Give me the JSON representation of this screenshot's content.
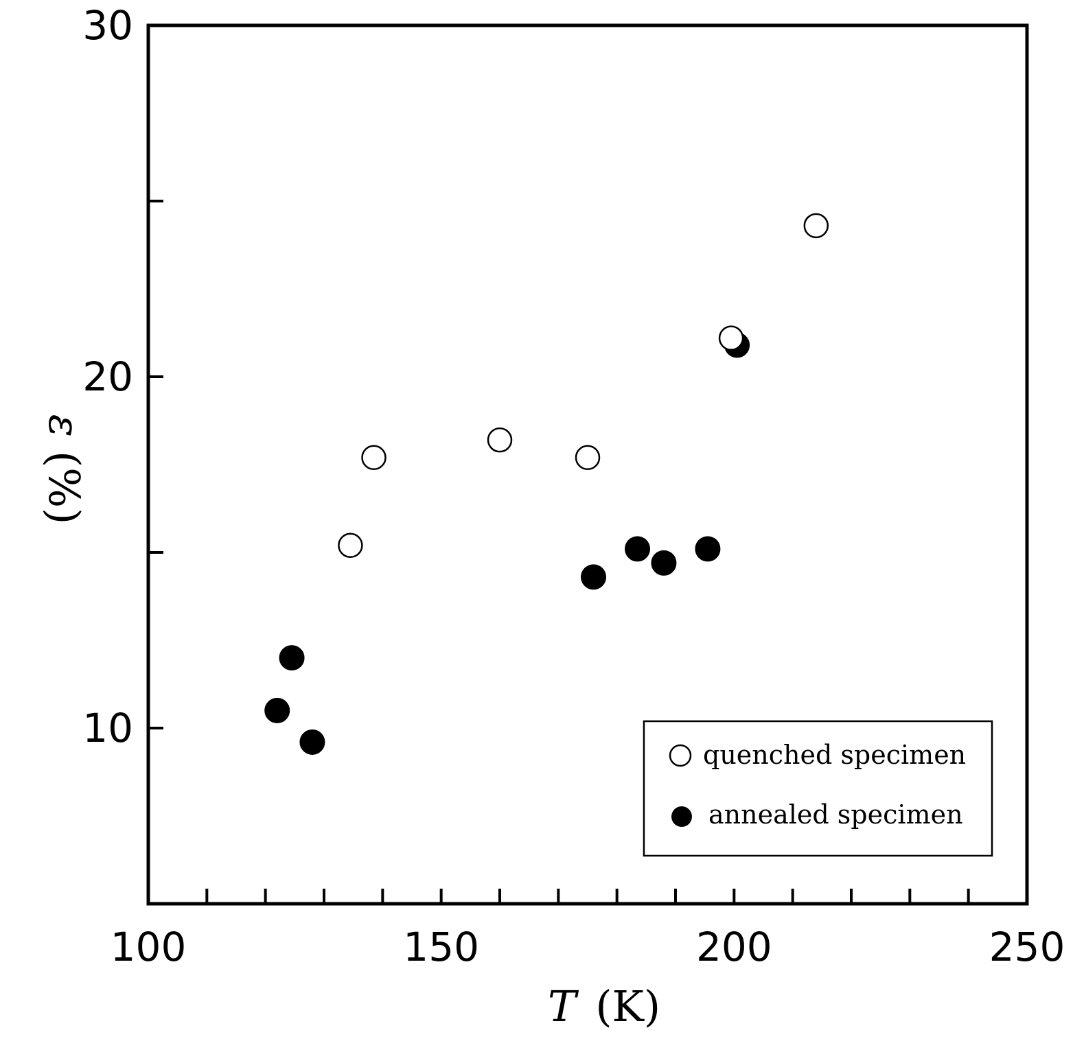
{
  "chart_data": {
    "type": "scatter",
    "title": "",
    "xlabel": "T",
    "xlabel_unit": "(K)",
    "ylabel": "ε",
    "ylabel_unit": "(%)",
    "xlim": [
      100,
      250
    ],
    "ylim": [
      5,
      30
    ],
    "x_tick_labels": [
      "100",
      "150",
      "200",
      "250"
    ],
    "y_tick_labels": [
      "10",
      "20",
      "30"
    ],
    "grid": false,
    "legend_position": "bottom-right",
    "series": [
      {
        "name": "quenched specimen",
        "marker": "open-circle",
        "x": [
          134.5,
          138.5,
          160,
          175,
          199.5,
          214
        ],
        "y": [
          15.2,
          17.7,
          18.2,
          17.7,
          21.1,
          24.3
        ]
      },
      {
        "name": "annealed specimen",
        "marker": "filled-circle",
        "x": [
          122,
          124.5,
          128,
          176,
          183.5,
          188,
          195.5,
          200.5
        ],
        "y": [
          10.5,
          12.0,
          9.6,
          14.3,
          15.1,
          14.7,
          15.1,
          20.9
        ]
      }
    ],
    "colors": {
      "axis": "#000000",
      "ylabel": "#9a6a2c",
      "marker": "#000000"
    }
  }
}
